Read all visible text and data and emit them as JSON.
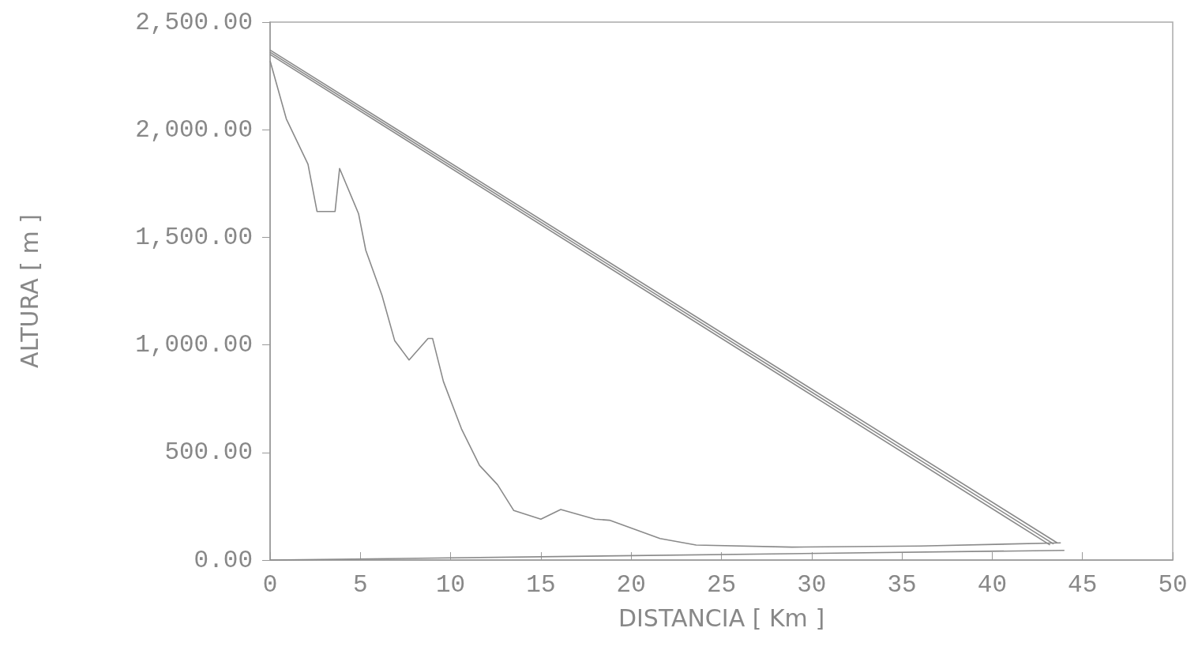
{
  "chart_data": {
    "type": "line",
    "xlabel": "DISTANCIA [ Km ]",
    "ylabel": "ALTURA [ m ]",
    "xlim": [
      0,
      50
    ],
    "xticks": [
      0,
      5,
      10,
      15,
      20,
      25,
      30,
      35,
      40,
      45,
      50
    ],
    "ylim": [
      0,
      2500
    ],
    "yticks": [
      {
        "value": 0,
        "label": "0.00"
      },
      {
        "value": 500,
        "label": "500.00"
      },
      {
        "value": 1000,
        "label": "1,000.00"
      },
      {
        "value": 1500,
        "label": "1,500.00"
      },
      {
        "value": 2000,
        "label": "2,000.00"
      },
      {
        "value": 2500,
        "label": "2,500.00"
      }
    ],
    "marker": "none",
    "line_style": "solid",
    "series": [
      {
        "color": "#8a8a8a",
        "x": [
          0,
          0.9,
          2.1,
          2.6,
          3.6,
          3.85,
          4.9,
          5.3,
          6.2,
          6.9,
          7.7,
          8.75,
          9.0,
          9.6,
          10.6,
          11.6,
          12.6,
          13.5,
          15.0,
          16.1,
          18.0,
          18.8,
          21.6,
          23.6,
          28.9,
          36,
          43.8
        ],
        "values": [
          2320,
          2050,
          1840,
          1620,
          1620,
          1820,
          1610,
          1440,
          1230,
          1020,
          930,
          1030,
          1030,
          830,
          610,
          440,
          350,
          230,
          190,
          235,
          190,
          185,
          100,
          70,
          60,
          65,
          80
        ]
      },
      {
        "color": "#8a8a8a",
        "x": [
          0,
          43.6
        ],
        "values": [
          2370,
          80
        ]
      },
      {
        "color": "#8a8a8a",
        "x": [
          0,
          43.4
        ],
        "values": [
          2360,
          75
        ]
      },
      {
        "color": "#8a8a8a",
        "x": [
          0,
          43.2
        ],
        "values": [
          2350,
          70
        ]
      },
      {
        "color": "#8a8a8a",
        "x": [
          0,
          44
        ],
        "values": [
          0,
          45
        ]
      }
    ]
  }
}
